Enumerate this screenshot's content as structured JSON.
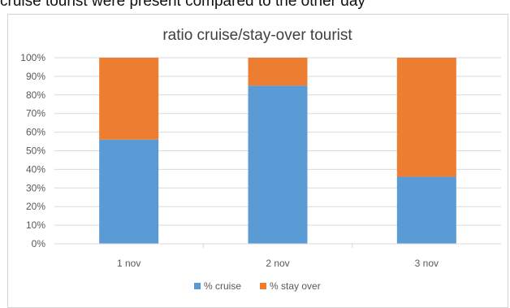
{
  "page_text": "cruise tourist were present compared to the other day",
  "chart_data": {
    "type": "bar",
    "stacked": true,
    "title": "ratio cruise/stay-over tourist",
    "categories": [
      "1 nov",
      "2 nov",
      "3 nov"
    ],
    "series": [
      {
        "name": "% cruise",
        "color": "#5b9bd5",
        "values": [
          56,
          85,
          36
        ]
      },
      {
        "name": "% stay over",
        "color": "#ed7d31",
        "values": [
          44,
          15,
          64
        ]
      }
    ],
    "y_ticks": [
      "0%",
      "10%",
      "20%",
      "30%",
      "40%",
      "50%",
      "60%",
      "70%",
      "80%",
      "90%",
      "100%"
    ],
    "ylim": [
      0,
      100
    ],
    "grid": true,
    "legend_position": "bottom"
  }
}
